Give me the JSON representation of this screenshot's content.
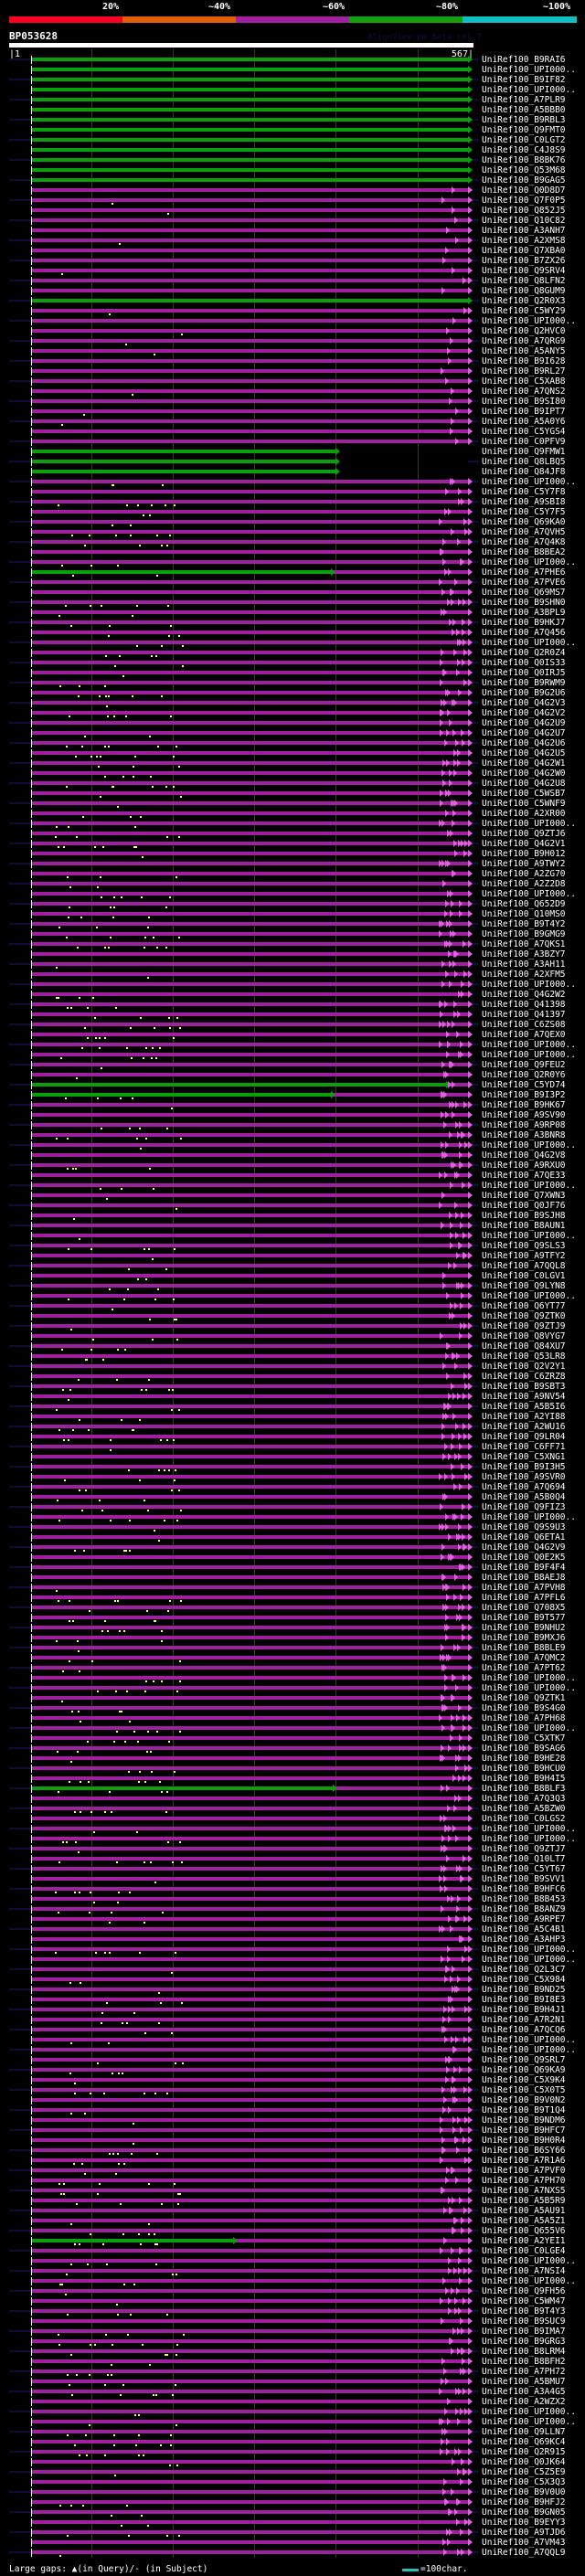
{
  "header": {
    "percent_labels": [
      "20%",
      "~40%",
      "~60%",
      "~80%",
      "~100%"
    ],
    "percent_colors": [
      "#ff0022",
      "#e06000",
      "#a020a0",
      "#10a010",
      "#10c0c0"
    ],
    "query_id": "BP053628",
    "credit": "AlignView.pm Beta rel.7",
    "start_label": "|1",
    "end_label": "567|"
  },
  "query_length": 567,
  "colors": {
    "green": "#0aa00a",
    "pink": "#a020a0",
    "gap": "#ffff66",
    "extension": "#0d0d3a"
  },
  "rows": [
    {
      "label": "UniRef100_B9RAI6",
      "color": "green"
    },
    {
      "label": "UniRef100_UPI000..",
      "color": "green"
    },
    {
      "label": "UniRef100_B9IF82",
      "color": "green"
    },
    {
      "label": "UniRef100_UPI000..",
      "color": "green"
    },
    {
      "label": "UniRef100_A7PLR9",
      "color": "green"
    },
    {
      "label": "UniRef100_A5BBB0",
      "color": "green"
    },
    {
      "label": "UniRef100_B9RBL3",
      "color": "green"
    },
    {
      "label": "UniRef100_Q9FMT0",
      "color": "green"
    },
    {
      "label": "UniRef100_C0LGT2",
      "color": "green"
    },
    {
      "label": "UniRef100_C4J8S9",
      "color": "green"
    },
    {
      "label": "UniRef100_B8BK76",
      "color": "green"
    },
    {
      "label": "UniRef100_Q53M68",
      "color": "green"
    },
    {
      "label": "UniRef100_B9GAG5",
      "color": "green"
    },
    {
      "label": "UniRef100_Q0D8D7",
      "color": "pink"
    },
    {
      "label": "UniRef100_Q7F0P5",
      "color": "pink"
    },
    {
      "label": "UniRef100_Q852J5",
      "color": "pink"
    },
    {
      "label": "UniRef100_Q10C82",
      "color": "pink"
    },
    {
      "label": "UniRef100_A3ANH7",
      "color": "pink"
    },
    {
      "label": "UniRef100_A2XMS8",
      "color": "pink"
    },
    {
      "label": "UniRef100_Q7XBA0",
      "color": "pink"
    },
    {
      "label": "UniRef100_B7ZX26",
      "color": "pink"
    },
    {
      "label": "UniRef100_Q9SRV4",
      "color": "pink"
    },
    {
      "label": "UniRef100_Q8LFN2",
      "color": "pink"
    },
    {
      "label": "UniRef100_Q8GUM9",
      "color": "pink"
    },
    {
      "label": "UniRef100_Q2R0X3",
      "color": "green"
    },
    {
      "label": "UniRef100_C5WY29",
      "color": "pink"
    },
    {
      "label": "UniRef100_UPI000..",
      "color": "pink"
    },
    {
      "label": "UniRef100_Q2HVC0",
      "color": "pink"
    },
    {
      "label": "UniRef100_A7QRG9",
      "color": "pink"
    },
    {
      "label": "UniRef100_A5ANY5",
      "color": "pink"
    },
    {
      "label": "UniRef100_B9I628",
      "color": "pink"
    },
    {
      "label": "UniRef100_B9RL27",
      "color": "pink"
    },
    {
      "label": "UniRef100_C5XAB8",
      "color": "pink"
    },
    {
      "label": "UniRef100_A7QNS2",
      "color": "pink"
    },
    {
      "label": "UniRef100_B9SI80",
      "color": "pink"
    },
    {
      "label": "UniRef100_B9IPT7",
      "color": "pink"
    },
    {
      "label": "UniRef100_A5A0Y6",
      "color": "pink"
    },
    {
      "label": "UniRef100_C5YGS4",
      "color": "pink"
    },
    {
      "label": "UniRef100_C0PFV9",
      "color": "pink"
    },
    {
      "label": "UniRef100_Q9FMW1",
      "color": "green",
      "end": 395
    },
    {
      "label": "UniRef100_Q8LBQ5",
      "color": "green",
      "end": 395
    },
    {
      "label": "UniRef100_Q84JF8",
      "color": "green",
      "end": 395
    },
    {
      "label": "UniRef100_UPI000..",
      "color": "pink"
    },
    {
      "label": "UniRef100_C5Y7F8",
      "color": "pink"
    },
    {
      "label": "UniRef100_A9SBI8",
      "color": "pink"
    },
    {
      "label": "UniRef100_C5Y7F5",
      "color": "pink"
    },
    {
      "label": "UniRef100_Q69KA0",
      "color": "pink"
    },
    {
      "label": "UniRef100_A7QVH5",
      "color": "pink"
    },
    {
      "label": "UniRef100_A7Q4K8",
      "color": "pink"
    },
    {
      "label": "UniRef100_B8BEA2",
      "color": "pink"
    },
    {
      "label": "UniRef100_UPI000..",
      "color": "pink"
    },
    {
      "label": "UniRef100_A7PHE6",
      "color": "pink",
      "green_to": 389
    },
    {
      "label": "UniRef100_A7PVE6",
      "color": "pink"
    },
    {
      "label": "UniRef100_Q69MS7",
      "color": "pink"
    },
    {
      "label": "UniRef100_B9SHN0",
      "color": "pink"
    },
    {
      "label": "UniRef100_A3BPL9",
      "color": "pink"
    },
    {
      "label": "UniRef100_B9HKJ7",
      "color": "pink"
    },
    {
      "label": "UniRef100_A7Q456",
      "color": "pink"
    },
    {
      "label": "UniRef100_UPI000..",
      "color": "pink"
    },
    {
      "label": "UniRef100_Q2R0Z4",
      "color": "pink"
    },
    {
      "label": "UniRef100_Q0IS33",
      "color": "pink"
    },
    {
      "label": "UniRef100_Q0IRJ5",
      "color": "pink"
    },
    {
      "label": "UniRef100_B9RWM9",
      "color": "pink"
    },
    {
      "label": "UniRef100_B9G2U6",
      "color": "pink"
    },
    {
      "label": "UniRef100_Q4G2V3",
      "color": "pink"
    },
    {
      "label": "UniRef100_Q4G2V2",
      "color": "pink"
    },
    {
      "label": "UniRef100_Q4G2U9",
      "color": "pink"
    },
    {
      "label": "UniRef100_Q4G2U7",
      "color": "pink"
    },
    {
      "label": "UniRef100_Q4G2U6",
      "color": "pink"
    },
    {
      "label": "UniRef100_Q4G2U5",
      "color": "pink"
    },
    {
      "label": "UniRef100_Q4G2W1",
      "color": "pink"
    },
    {
      "label": "UniRef100_Q4G2W0",
      "color": "pink"
    },
    {
      "label": "UniRef100_Q4G2U8",
      "color": "pink"
    },
    {
      "label": "UniRef100_C5WSB7",
      "color": "pink"
    },
    {
      "label": "UniRef100_C5WNF9",
      "color": "pink"
    },
    {
      "label": "UniRef100_A2XR00",
      "color": "pink"
    },
    {
      "label": "UniRef100_UPI000..",
      "color": "pink"
    },
    {
      "label": "UniRef100_Q9ZTJ6",
      "color": "pink"
    },
    {
      "label": "UniRef100_Q4G2V1",
      "color": "pink"
    },
    {
      "label": "UniRef100_B9H012",
      "color": "pink"
    },
    {
      "label": "UniRef100_A9TWY2",
      "color": "pink"
    },
    {
      "label": "UniRef100_A2ZG70",
      "color": "pink"
    },
    {
      "label": "UniRef100_A2Z2D8",
      "color": "pink"
    },
    {
      "label": "UniRef100_UPI000..",
      "color": "pink"
    },
    {
      "label": "UniRef100_Q652D9",
      "color": "pink"
    },
    {
      "label": "UniRef100_Q10MS0",
      "color": "pink"
    },
    {
      "label": "UniRef100_B9T4Y2",
      "color": "pink"
    },
    {
      "label": "UniRef100_B9GMG9",
      "color": "pink"
    },
    {
      "label": "UniRef100_A7QKS1",
      "color": "pink"
    },
    {
      "label": "UniRef100_A3BZY7",
      "color": "pink"
    },
    {
      "label": "UniRef100_A3AH11",
      "color": "pink"
    },
    {
      "label": "UniRef100_A2XFM5",
      "color": "pink"
    },
    {
      "label": "UniRef100_UPI000..",
      "color": "pink"
    },
    {
      "label": "UniRef100_Q4G2W2",
      "color": "pink"
    },
    {
      "label": "UniRef100_Q41398",
      "color": "pink"
    },
    {
      "label": "UniRef100_Q41397",
      "color": "pink"
    },
    {
      "label": "UniRef100_C6ZS08",
      "color": "pink"
    },
    {
      "label": "UniRef100_A7QEX0",
      "color": "pink"
    },
    {
      "label": "UniRef100_UPI000..",
      "color": "pink"
    },
    {
      "label": "UniRef100_UPI000..",
      "color": "pink"
    },
    {
      "label": "UniRef100_Q9FEU2",
      "color": "pink"
    },
    {
      "label": "UniRef100_Q2R0Y6",
      "color": "pink"
    },
    {
      "label": "UniRef100_C5YD74",
      "color": "pink",
      "green_to": 538
    },
    {
      "label": "UniRef100_B9I3P2",
      "color": "pink",
      "green_to": 389
    },
    {
      "label": "UniRef100_B9HK67",
      "color": "pink"
    },
    {
      "label": "UniRef100_A9SV90",
      "color": "pink"
    },
    {
      "label": "UniRef100_A9RP08",
      "color": "pink"
    },
    {
      "label": "UniRef100_A3BNR8",
      "color": "pink"
    },
    {
      "label": "UniRef100_UPI000..",
      "color": "pink"
    },
    {
      "label": "UniRef100_Q4G2V8",
      "color": "pink"
    },
    {
      "label": "UniRef100_A9RXU0",
      "color": "pink"
    },
    {
      "label": "UniRef100_A7QE33",
      "color": "pink"
    },
    {
      "label": "UniRef100_UPI000..",
      "color": "pink"
    },
    {
      "label": "UniRef100_Q7XWN3",
      "color": "pink"
    },
    {
      "label": "UniRef100_Q0JF76",
      "color": "pink"
    },
    {
      "label": "UniRef100_B9SJH8",
      "color": "pink"
    },
    {
      "label": "UniRef100_B8AUN1",
      "color": "pink"
    },
    {
      "label": "UniRef100_UPI000..",
      "color": "pink"
    },
    {
      "label": "UniRef100_Q9SLS3",
      "color": "pink"
    },
    {
      "label": "UniRef100_A9TFY2",
      "color": "pink"
    },
    {
      "label": "UniRef100_A7QQL8",
      "color": "pink"
    },
    {
      "label": "UniRef100_C0LGV1",
      "color": "pink"
    },
    {
      "label": "UniRef100_Q9LYN8",
      "color": "pink"
    },
    {
      "label": "UniRef100_UPI000..",
      "color": "pink"
    },
    {
      "label": "UniRef100_Q6YT77",
      "color": "pink"
    },
    {
      "label": "UniRef100_Q9ZTK0",
      "color": "pink"
    },
    {
      "label": "UniRef100_Q9ZTJ9",
      "color": "pink"
    },
    {
      "label": "UniRef100_Q8VYG7",
      "color": "pink"
    },
    {
      "label": "UniRef100_Q84XU7",
      "color": "pink"
    },
    {
      "label": "UniRef100_Q53LR8",
      "color": "pink"
    },
    {
      "label": "UniRef100_Q2V2Y1",
      "color": "pink"
    },
    {
      "label": "UniRef100_C6ZRZ8",
      "color": "pink"
    },
    {
      "label": "UniRef100_B9SBT3",
      "color": "pink"
    },
    {
      "label": "UniRef100_A9NV54",
      "color": "pink"
    },
    {
      "label": "UniRef100_A5B5I6",
      "color": "pink"
    },
    {
      "label": "UniRef100_A2YI88",
      "color": "pink"
    },
    {
      "label": "UniRef100_A2WU16",
      "color": "pink"
    },
    {
      "label": "UniRef100_Q9LR04",
      "color": "pink"
    },
    {
      "label": "UniRef100_C6FF71",
      "color": "pink"
    },
    {
      "label": "UniRef100_C5XNG1",
      "color": "pink"
    },
    {
      "label": "UniRef100_B9I3H5",
      "color": "pink"
    },
    {
      "label": "UniRef100_A9SVR0",
      "color": "pink"
    },
    {
      "label": "UniRef100_A7Q694",
      "color": "pink"
    },
    {
      "label": "UniRef100_A5B0Q4",
      "color": "pink"
    },
    {
      "label": "UniRef100_Q9FIZ3",
      "color": "pink"
    },
    {
      "label": "UniRef100_UPI000..",
      "color": "pink"
    },
    {
      "label": "UniRef100_Q9S9U3",
      "color": "pink"
    },
    {
      "label": "UniRef100_Q6ETA1",
      "color": "pink"
    },
    {
      "label": "UniRef100_Q4G2V9",
      "color": "pink"
    },
    {
      "label": "UniRef100_Q0E2K5",
      "color": "pink"
    },
    {
      "label": "UniRef100_B9F4F4",
      "color": "pink"
    },
    {
      "label": "UniRef100_B8AEJ8",
      "color": "pink"
    },
    {
      "label": "UniRef100_A7PVH8",
      "color": "pink"
    },
    {
      "label": "UniRef100_A7PFL6",
      "color": "pink"
    },
    {
      "label": "UniRef100_Q708X5",
      "color": "pink"
    },
    {
      "label": "UniRef100_B9T577",
      "color": "pink"
    },
    {
      "label": "UniRef100_B9NHU2",
      "color": "pink"
    },
    {
      "label": "UniRef100_B9MXJ6",
      "color": "pink"
    },
    {
      "label": "UniRef100_B8BLE9",
      "color": "pink"
    },
    {
      "label": "UniRef100_A7QMC2",
      "color": "pink"
    },
    {
      "label": "UniRef100_A7PT62",
      "color": "pink"
    },
    {
      "label": "UniRef100_UPI000..",
      "color": "pink"
    },
    {
      "label": "UniRef100_UPI000..",
      "color": "pink"
    },
    {
      "label": "UniRef100_Q9ZTK1",
      "color": "pink"
    },
    {
      "label": "UniRef100_B9S4G0",
      "color": "pink"
    },
    {
      "label": "UniRef100_A7PH68",
      "color": "pink"
    },
    {
      "label": "UniRef100_UPI000..",
      "color": "pink"
    },
    {
      "label": "UniRef100_C5XTK7",
      "color": "pink"
    },
    {
      "label": "UniRef100_B9SAG6",
      "color": "pink"
    },
    {
      "label": "UniRef100_B9HE28",
      "color": "pink"
    },
    {
      "label": "UniRef100_B9HCU0",
      "color": "pink"
    },
    {
      "label": "UniRef100_B9H4I5",
      "color": "pink"
    },
    {
      "label": "UniRef100_B8BLF3",
      "color": "pink",
      "green_to": 391
    },
    {
      "label": "UniRef100_A7Q3Q3",
      "color": "pink"
    },
    {
      "label": "UniRef100_A5BZW0",
      "color": "pink"
    },
    {
      "label": "UniRef100_C0LGS2",
      "color": "pink"
    },
    {
      "label": "UniRef100_UPI000..",
      "color": "pink"
    },
    {
      "label": "UniRef100_UPI000..",
      "color": "pink"
    },
    {
      "label": "UniRef100_Q9ZTJ7",
      "color": "pink"
    },
    {
      "label": "UniRef100_Q10LT7",
      "color": "pink"
    },
    {
      "label": "UniRef100_C5YT67",
      "color": "pink"
    },
    {
      "label": "UniRef100_B9SVV1",
      "color": "pink"
    },
    {
      "label": "UniRef100_B9HFC6",
      "color": "pink"
    },
    {
      "label": "UniRef100_B8B453",
      "color": "pink"
    },
    {
      "label": "UniRef100_B8ANZ9",
      "color": "pink"
    },
    {
      "label": "UniRef100_A9RPE7",
      "color": "pink"
    },
    {
      "label": "UniRef100_A5C4B1",
      "color": "pink"
    },
    {
      "label": "UniRef100_A3AHP3",
      "color": "pink"
    },
    {
      "label": "UniRef100_UPI000..",
      "color": "pink"
    },
    {
      "label": "UniRef100_UPI000..",
      "color": "pink"
    },
    {
      "label": "UniRef100_Q2L3C7",
      "color": "pink"
    },
    {
      "label": "UniRef100_C5X984",
      "color": "pink"
    },
    {
      "label": "UniRef100_B9ND25",
      "color": "pink"
    },
    {
      "label": "UniRef100_B9I8E3",
      "color": "pink"
    },
    {
      "label": "UniRef100_B9H4J1",
      "color": "pink"
    },
    {
      "label": "UniRef100_A7R2N1",
      "color": "pink"
    },
    {
      "label": "UniRef100_A7QCQ6",
      "color": "pink"
    },
    {
      "label": "UniRef100_UPI000..",
      "color": "pink"
    },
    {
      "label": "UniRef100_UPI000..",
      "color": "pink"
    },
    {
      "label": "UniRef100_Q9SRL7",
      "color": "pink"
    },
    {
      "label": "UniRef100_Q69KA9",
      "color": "pink"
    },
    {
      "label": "UniRef100_C5X9K4",
      "color": "pink"
    },
    {
      "label": "UniRef100_C5X0T5",
      "color": "pink"
    },
    {
      "label": "UniRef100_B9V0N2",
      "color": "pink"
    },
    {
      "label": "UniRef100_B9T1Q4",
      "color": "pink"
    },
    {
      "label": "UniRef100_B9NDM6",
      "color": "pink"
    },
    {
      "label": "UniRef100_B9HFC7",
      "color": "pink"
    },
    {
      "label": "UniRef100_B9H0R4",
      "color": "pink"
    },
    {
      "label": "UniRef100_B6SY66",
      "color": "pink"
    },
    {
      "label": "UniRef100_A7R1A6",
      "color": "pink"
    },
    {
      "label": "UniRef100_A7PVF0",
      "color": "pink"
    },
    {
      "label": "UniRef100_A7PH70",
      "color": "pink"
    },
    {
      "label": "UniRef100_A7NXS5",
      "color": "pink"
    },
    {
      "label": "UniRef100_A5B5R9",
      "color": "pink"
    },
    {
      "label": "UniRef100_A5AU91",
      "color": "pink"
    },
    {
      "label": "UniRef100_A5A5Z1",
      "color": "pink"
    },
    {
      "label": "UniRef100_Q655V6",
      "color": "pink"
    },
    {
      "label": "UniRef100_A2YEI1",
      "color": "pink",
      "green_to": 262
    },
    {
      "label": "UniRef100_C0LGE4",
      "color": "pink"
    },
    {
      "label": "UniRef100_UPI000..",
      "color": "pink"
    },
    {
      "label": "UniRef100_A7NSI4",
      "color": "pink"
    },
    {
      "label": "UniRef100_UPI000..",
      "color": "pink"
    },
    {
      "label": "UniRef100_Q9FH56",
      "color": "pink"
    },
    {
      "label": "UniRef100_C5WM47",
      "color": "pink"
    },
    {
      "label": "UniRef100_B9T4Y3",
      "color": "pink"
    },
    {
      "label": "UniRef100_B9SUC9",
      "color": "pink"
    },
    {
      "label": "UniRef100_B9IMA7",
      "color": "pink"
    },
    {
      "label": "UniRef100_B9GRG3",
      "color": "pink"
    },
    {
      "label": "UniRef100_B8LRM4",
      "color": "pink"
    },
    {
      "label": "UniRef100_B8BFH2",
      "color": "pink"
    },
    {
      "label": "UniRef100_A7PH72",
      "color": "pink"
    },
    {
      "label": "UniRef100_A5BMU7",
      "color": "pink"
    },
    {
      "label": "UniRef100_A3A4G5",
      "color": "pink"
    },
    {
      "label": "UniRef100_A2WZX2",
      "color": "pink"
    },
    {
      "label": "UniRef100_UPI000..",
      "color": "pink"
    },
    {
      "label": "UniRef100_UPI000..",
      "color": "pink"
    },
    {
      "label": "UniRef100_Q9LLN7",
      "color": "pink"
    },
    {
      "label": "UniRef100_Q69KC4",
      "color": "pink"
    },
    {
      "label": "UniRef100_Q2R915",
      "color": "pink"
    },
    {
      "label": "UniRef100_Q0JK64",
      "color": "pink"
    },
    {
      "label": "UniRef100_C5Z5E9",
      "color": "pink"
    },
    {
      "label": "UniRef100_C5X3Q3",
      "color": "pink"
    },
    {
      "label": "UniRef100_B9V0U0",
      "color": "pink"
    },
    {
      "label": "UniRef100_B9HFJ2",
      "color": "pink"
    },
    {
      "label": "UniRef100_B9GN05",
      "color": "pink"
    },
    {
      "label": "UniRef100_B9EYY3",
      "color": "pink"
    },
    {
      "label": "UniRef100_A9TJD6",
      "color": "pink"
    },
    {
      "label": "UniRef100_A7VM43",
      "color": "pink"
    },
    {
      "label": "UniRef100_A7QQL9",
      "color": "pink"
    }
  ],
  "footer": {
    "legend_gaps": "Large gaps: ▲(in Query)/- (in Subject)",
    "scale_legend": "=100char."
  }
}
